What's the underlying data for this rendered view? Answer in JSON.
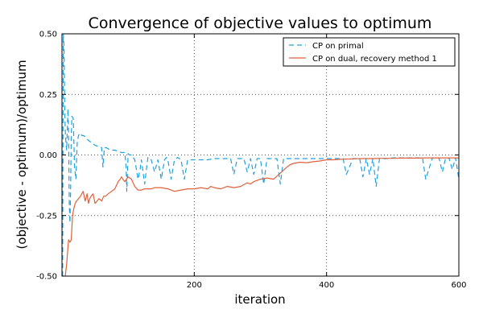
{
  "chart_data": {
    "type": "line",
    "title": "Convergence of objective values to optimum",
    "xlabel": "iteration",
    "ylabel": "(objective - optimum)/optimum",
    "xlim": [
      0,
      600
    ],
    "ylim": [
      -0.5,
      0.5
    ],
    "x_ticks": [
      200,
      400,
      600
    ],
    "x_tick_labels": [
      "200",
      "400",
      "600"
    ],
    "y_ticks": [
      0.5,
      0.25,
      0.0,
      -0.25,
      -0.5
    ],
    "y_tick_labels": [
      "0.50",
      "0.25",
      "0.00",
      "-0.25",
      "-0.50"
    ],
    "grid": "dotted",
    "legend_position": "top-right",
    "series": [
      {
        "name": "CP on primal",
        "color": "#1fa1e0",
        "dash": "dashed",
        "x": [
          1,
          2,
          3,
          4,
          5,
          6,
          7,
          8,
          9,
          10,
          11,
          12,
          13,
          14,
          15,
          17,
          19,
          21,
          23,
          25,
          27,
          30,
          33,
          36,
          40,
          45,
          50,
          55,
          60,
          62,
          64,
          65,
          67,
          70,
          75,
          80,
          85,
          90,
          95,
          97,
          98,
          100,
          102,
          105,
          110,
          115,
          118,
          120,
          125,
          128,
          130,
          135,
          140,
          145,
          150,
          155,
          158,
          160,
          165,
          170,
          175,
          180,
          185,
          190,
          195,
          200,
          210,
          220,
          230,
          240,
          250,
          255,
          260,
          265,
          270,
          275,
          280,
          285,
          290,
          295,
          300,
          305,
          310,
          315,
          320,
          325,
          330,
          335,
          340,
          345,
          350,
          360,
          370,
          380,
          390,
          400,
          410,
          420,
          425,
          430,
          440,
          450,
          455,
          460,
          465,
          470,
          475,
          480,
          490,
          500,
          510,
          520,
          530,
          540,
          545,
          550,
          560,
          570,
          575,
          580,
          585,
          590,
          595,
          600
        ],
        "y": [
          -0.5,
          0.5,
          0.45,
          0.2,
          0.1,
          0.05,
          0.02,
          0.1,
          0.19,
          0.1,
          -0.2,
          -0.28,
          -0.15,
          0.08,
          0.16,
          0.15,
          -0.05,
          -0.1,
          0.05,
          0.08,
          0.09,
          0.08,
          0.08,
          0.07,
          0.06,
          0.05,
          0.04,
          0.035,
          0.03,
          -0.05,
          0.03,
          0.03,
          0.03,
          0.025,
          0.02,
          0.02,
          0.015,
          0.01,
          0.01,
          -0.05,
          -0.15,
          0.005,
          0.0,
          0.0,
          -0.02,
          -0.1,
          -0.06,
          -0.02,
          -0.12,
          -0.05,
          -0.01,
          -0.02,
          -0.07,
          -0.02,
          -0.1,
          -0.02,
          -0.01,
          -0.02,
          -0.1,
          -0.02,
          -0.01,
          -0.02,
          -0.1,
          -0.02,
          -0.02,
          -0.02,
          -0.02,
          -0.02,
          -0.015,
          -0.015,
          -0.015,
          -0.015,
          -0.08,
          -0.015,
          -0.015,
          -0.015,
          -0.07,
          -0.015,
          -0.08,
          -0.015,
          -0.015,
          -0.12,
          -0.015,
          -0.015,
          -0.015,
          -0.015,
          -0.12,
          -0.015,
          -0.015,
          -0.015,
          -0.015,
          -0.015,
          -0.015,
          -0.015,
          -0.015,
          -0.015,
          -0.015,
          -0.015,
          -0.015,
          -0.08,
          -0.015,
          -0.015,
          -0.09,
          -0.015,
          -0.08,
          -0.015,
          -0.13,
          -0.015,
          -0.015,
          -0.012,
          -0.012,
          -0.012,
          -0.012,
          -0.012,
          -0.012,
          -0.1,
          -0.012,
          -0.012,
          -0.07,
          -0.012,
          -0.012,
          -0.06,
          -0.012,
          -0.1
        ]
      },
      {
        "name": "CP on dual, recovery method 1",
        "color": "#e0603c",
        "dash": "solid",
        "x": [
          5,
          7,
          9,
          10,
          12,
          14,
          16,
          18,
          20,
          22,
          25,
          28,
          30,
          32,
          35,
          38,
          40,
          42,
          44,
          47,
          50,
          53,
          56,
          60,
          63,
          66,
          70,
          75,
          80,
          85,
          88,
          90,
          92,
          95,
          100,
          105,
          110,
          115,
          120,
          125,
          130,
          135,
          140,
          150,
          160,
          170,
          180,
          190,
          200,
          210,
          220,
          225,
          230,
          240,
          250,
          260,
          270,
          280,
          285,
          290,
          300,
          310,
          320,
          330,
          340,
          345,
          350,
          360,
          370,
          380,
          390,
          400,
          410,
          420,
          430,
          440,
          450,
          460,
          470,
          480,
          490,
          500,
          510,
          520,
          530,
          540,
          550,
          560,
          570,
          580,
          590,
          600
        ],
        "y": [
          -0.5,
          -0.45,
          -0.38,
          -0.35,
          -0.36,
          -0.35,
          -0.25,
          -0.22,
          -0.2,
          -0.19,
          -0.18,
          -0.17,
          -0.16,
          -0.15,
          -0.19,
          -0.16,
          -0.2,
          -0.18,
          -0.17,
          -0.16,
          -0.2,
          -0.19,
          -0.18,
          -0.19,
          -0.17,
          -0.17,
          -0.16,
          -0.15,
          -0.14,
          -0.11,
          -0.1,
          -0.09,
          -0.1,
          -0.11,
          -0.09,
          -0.1,
          -0.13,
          -0.145,
          -0.145,
          -0.14,
          -0.14,
          -0.14,
          -0.135,
          -0.135,
          -0.14,
          -0.15,
          -0.145,
          -0.14,
          -0.14,
          -0.135,
          -0.14,
          -0.13,
          -0.135,
          -0.14,
          -0.13,
          -0.135,
          -0.13,
          -0.115,
          -0.12,
          -0.11,
          -0.1,
          -0.095,
          -0.1,
          -0.075,
          -0.05,
          -0.04,
          -0.035,
          -0.03,
          -0.032,
          -0.028,
          -0.025,
          -0.02,
          -0.02,
          -0.018,
          -0.017,
          -0.016,
          -0.015,
          -0.015,
          -0.015,
          -0.014,
          -0.014,
          -0.014,
          -0.013,
          -0.013,
          -0.013,
          -0.013,
          -0.012,
          -0.012,
          -0.012,
          -0.012,
          -0.012,
          -0.012
        ]
      }
    ]
  }
}
